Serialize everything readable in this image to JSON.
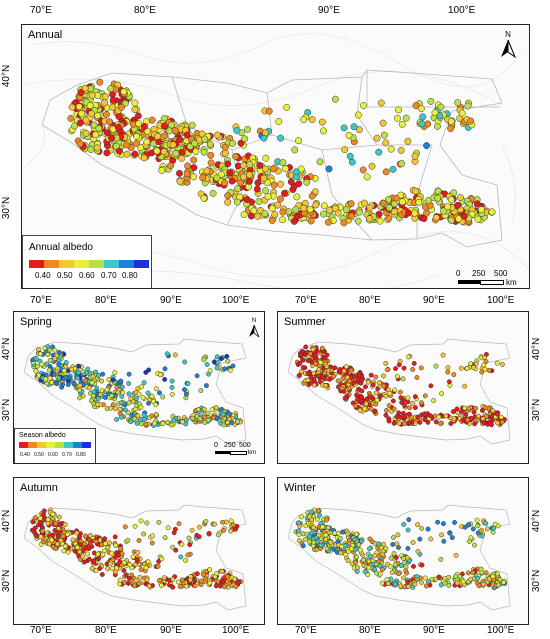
{
  "colors": {
    "albedo_scale": [
      "#e41a1c",
      "#f08a20",
      "#f3c632",
      "#e8f03a",
      "#b8e048",
      "#3ec7c9",
      "#1e7fd6",
      "#1c2fd8"
    ],
    "panel_bg": "#fbfbfb",
    "region_outline": "#b7b7b7"
  },
  "top_axis": {
    "labels": [
      "70°E",
      "80°E",
      "90°E",
      "100°E"
    ]
  },
  "left_axis": {
    "labels": [
      "40°N",
      "30°N"
    ]
  },
  "annual": {
    "title": "Annual",
    "north": "N",
    "legend_title": "Annual albedo",
    "legend_labels": [
      "0.40",
      "0.50",
      "0.60",
      "0.70",
      "0.80"
    ],
    "scale_labels": [
      "0",
      "250",
      "500"
    ],
    "scale_unit": "km"
  },
  "season_axis_top": {
    "labels": [
      "70°E",
      "80°E",
      "90°E",
      "100°E"
    ]
  },
  "season_axis_bottom": {
    "labels": [
      "70°E",
      "80°E",
      "90°E",
      "100°E"
    ]
  },
  "season_left_labels": {
    "labels": [
      "40°N",
      "30°N"
    ]
  },
  "spring": {
    "title": "Spring",
    "north": "N",
    "legend_title": "Season albedo",
    "legend_labels": [
      "0.40",
      "0.50",
      "0.60",
      "0.70",
      "0.80"
    ],
    "scale_labels": [
      "0",
      "250",
      "500"
    ],
    "scale_unit": "km"
  },
  "summer": {
    "title": "Summer"
  },
  "autumn": {
    "title": "Autumn"
  },
  "winter": {
    "title": "Winter"
  }
}
